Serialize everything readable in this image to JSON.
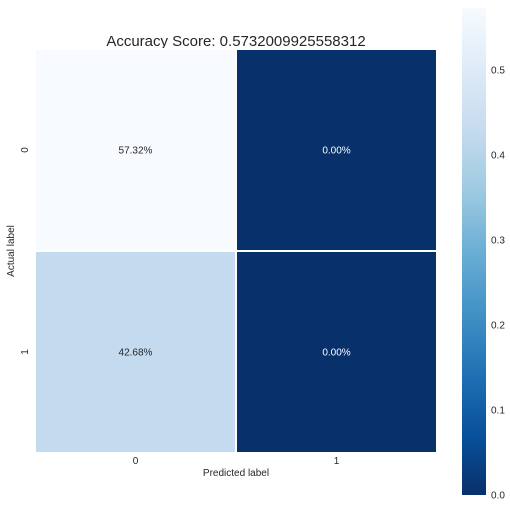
{
  "chart_data": {
    "type": "heatmap",
    "title": "Accuracy Score: 0.5732009925558312",
    "xlabel": "Predicted label",
    "ylabel": "Actual label",
    "x_categories": [
      "0",
      "1"
    ],
    "y_categories": [
      "0",
      "1"
    ],
    "values": [
      [
        0.5732,
        0.0
      ],
      [
        0.4268,
        0.0
      ]
    ],
    "annotations": [
      [
        "57.32%",
        "0.00%"
      ],
      [
        "42.68%",
        "0.00%"
      ]
    ],
    "colormap": "Blues_r",
    "colorbar": {
      "range": [
        0.0,
        0.5732
      ],
      "ticks": [
        0.0,
        0.1,
        0.2,
        0.3,
        0.4,
        0.5
      ],
      "tick_labels": [
        "0.0",
        "0.1",
        "0.2",
        "0.3",
        "0.4",
        "0.5"
      ]
    },
    "cell_border_color": "#ffffff"
  }
}
